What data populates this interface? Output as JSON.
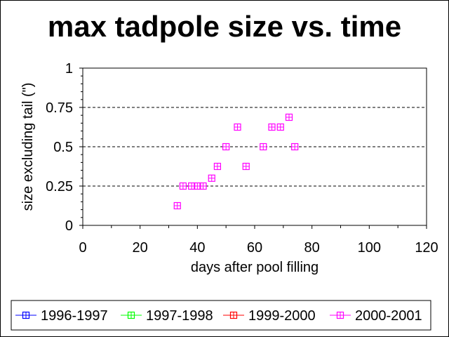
{
  "chart_data": {
    "type": "scatter",
    "title": "max tadpole size vs. time",
    "xlabel": "days after pool filling",
    "ylabel": "size excluding tail (\")",
    "xlim": [
      0,
      120
    ],
    "ylim": [
      0,
      1
    ],
    "x_ticks": [
      "0",
      "20",
      "40",
      "60",
      "80",
      "100",
      "120"
    ],
    "y_ticks": [
      "0",
      "0.25",
      "0.5",
      "0.75",
      "1"
    ],
    "gridlines_y": [
      0.25,
      0.5,
      0.75
    ],
    "grid_style": "dashed horizontal",
    "legend_position": "bottom",
    "series": [
      {
        "name": "1996-1997",
        "color": "#0000ff",
        "marker": "square-cross",
        "points": []
      },
      {
        "name": "1997-1998",
        "color": "#00ff00",
        "marker": "square-cross",
        "points": []
      },
      {
        "name": "1999-2000",
        "color": "#ff0000",
        "marker": "square-cross",
        "points": []
      },
      {
        "name": "2000-2001",
        "color": "#ff00ff",
        "marker": "square-cross",
        "points": [
          [
            33,
            0.125
          ],
          [
            35,
            0.25
          ],
          [
            38,
            0.25
          ],
          [
            40,
            0.25
          ],
          [
            42,
            0.25
          ],
          [
            45,
            0.3
          ],
          [
            47,
            0.375
          ],
          [
            50,
            0.5
          ],
          [
            54,
            0.625
          ],
          [
            57,
            0.375
          ],
          [
            63,
            0.5
          ],
          [
            66,
            0.625
          ],
          [
            69,
            0.625
          ],
          [
            72,
            0.6875
          ],
          [
            74,
            0.5
          ]
        ]
      }
    ]
  }
}
